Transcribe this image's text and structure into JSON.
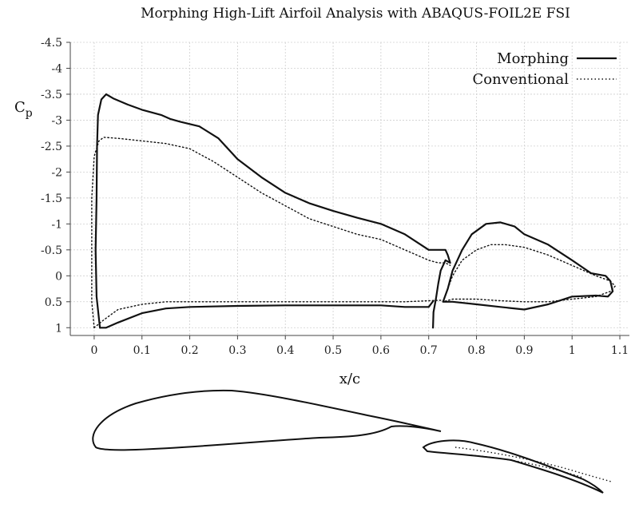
{
  "chart_data": {
    "type": "line",
    "title": "Morphing High-Lift Airfoil Analysis with ABAQUS-FOIL2E FSI",
    "xlabel": "x/c",
    "ylabel": "Cp",
    "ylabel_main": "C",
    "ylabel_sub": "p",
    "xlim": [
      -0.05,
      1.12
    ],
    "ylim": [
      -4.5,
      1.15
    ],
    "y_inverted": true,
    "grid": true,
    "legend_position": "top-right",
    "x_ticks": [
      "0",
      "0.1",
      "0.2",
      "0.3",
      "0.4",
      "0.5",
      "0.6",
      "0.7",
      "0.8",
      "0.9",
      "1",
      "1.1"
    ],
    "x_tick_values": [
      0,
      0.1,
      0.2,
      0.3,
      0.4,
      0.5,
      0.6,
      0.7,
      0.8,
      0.9,
      1.0,
      1.1
    ],
    "y_ticks": [
      "-4.5",
      "-4",
      "-3.5",
      "-3",
      "-2.5",
      "-2",
      "-1.5",
      "-1",
      "-0.5",
      "0",
      "0.5",
      "1"
    ],
    "y_tick_values": [
      -4.5,
      -4,
      -3.5,
      -3,
      -2.5,
      -2,
      -1.5,
      -1,
      -0.5,
      0,
      0.5,
      1
    ],
    "series": [
      {
        "name": "Morphing",
        "style": "solid",
        "color": "#111111",
        "segments": [
          [
            [
              0.012,
              1.0
            ],
            [
              0.005,
              0.4
            ],
            [
              0.003,
              -0.5
            ],
            [
              0.005,
              -1.5
            ],
            [
              0.006,
              -2.5
            ],
            [
              0.008,
              -3.1
            ],
            [
              0.015,
              -3.4
            ],
            [
              0.025,
              -3.5
            ],
            [
              0.04,
              -3.42
            ],
            [
              0.07,
              -3.3
            ],
            [
              0.1,
              -3.2
            ],
            [
              0.14,
              -3.1
            ],
            [
              0.16,
              -3.02
            ],
            [
              0.18,
              -2.97
            ],
            [
              0.22,
              -2.88
            ],
            [
              0.26,
              -2.65
            ],
            [
              0.3,
              -2.25
            ],
            [
              0.35,
              -1.9
            ],
            [
              0.4,
              -1.6
            ],
            [
              0.45,
              -1.4
            ],
            [
              0.5,
              -1.25
            ],
            [
              0.55,
              -1.12
            ],
            [
              0.6,
              -1.0
            ],
            [
              0.65,
              -0.8
            ],
            [
              0.7,
              -0.5
            ],
            [
              0.72,
              -0.5
            ],
            [
              0.735,
              -0.5
            ],
            [
              0.74,
              -0.4
            ],
            [
              0.745,
              -0.25
            ],
            [
              0.735,
              -0.3
            ],
            [
              0.725,
              -0.1
            ],
            [
              0.72,
              0.15
            ],
            [
              0.715,
              0.45
            ],
            [
              0.71,
              0.7
            ],
            [
              0.709,
              1.0
            ]
          ],
          [
            [
              0.012,
              1.0
            ],
            [
              0.025,
              1.0
            ],
            [
              0.05,
              0.9
            ],
            [
              0.1,
              0.72
            ],
            [
              0.15,
              0.63
            ],
            [
              0.2,
              0.6
            ],
            [
              0.3,
              0.58
            ],
            [
              0.4,
              0.57
            ],
            [
              0.5,
              0.57
            ],
            [
              0.6,
              0.57
            ],
            [
              0.65,
              0.6
            ],
            [
              0.7,
              0.6
            ],
            [
              0.71,
              0.48
            ]
          ],
          [
            [
              0.73,
              0.5
            ],
            [
              0.74,
              0.25
            ],
            [
              0.75,
              -0.1
            ],
            [
              0.77,
              -0.5
            ],
            [
              0.79,
              -0.8
            ],
            [
              0.82,
              -1.0
            ],
            [
              0.85,
              -1.03
            ],
            [
              0.88,
              -0.95
            ],
            [
              0.9,
              -0.8
            ],
            [
              0.95,
              -0.6
            ],
            [
              1.0,
              -0.3
            ],
            [
              1.04,
              -0.05
            ],
            [
              1.07,
              0.0
            ],
            [
              1.08,
              0.1
            ],
            [
              1.085,
              0.3
            ],
            [
              1.075,
              0.4
            ],
            [
              1.05,
              0.38
            ],
            [
              1.0,
              0.4
            ],
            [
              0.95,
              0.55
            ],
            [
              0.9,
              0.65
            ],
            [
              0.85,
              0.6
            ],
            [
              0.8,
              0.55
            ],
            [
              0.75,
              0.5
            ],
            [
              0.73,
              0.5
            ]
          ]
        ]
      },
      {
        "name": "Conventional",
        "style": "dotted",
        "color": "#111111",
        "segments": [
          [
            [
              0.0,
              1.0
            ],
            [
              -0.005,
              0.5
            ],
            [
              -0.005,
              -0.5
            ],
            [
              -0.005,
              -1.5
            ],
            [
              0.0,
              -2.3
            ],
            [
              0.01,
              -2.6
            ],
            [
              0.02,
              -2.67
            ],
            [
              0.05,
              -2.65
            ],
            [
              0.1,
              -2.6
            ],
            [
              0.15,
              -2.55
            ],
            [
              0.2,
              -2.45
            ],
            [
              0.25,
              -2.2
            ],
            [
              0.3,
              -1.9
            ],
            [
              0.35,
              -1.6
            ],
            [
              0.4,
              -1.35
            ],
            [
              0.45,
              -1.1
            ],
            [
              0.5,
              -0.95
            ],
            [
              0.55,
              -0.8
            ],
            [
              0.6,
              -0.7
            ],
            [
              0.65,
              -0.5
            ],
            [
              0.7,
              -0.3
            ],
            [
              0.72,
              -0.25
            ],
            [
              0.735,
              -0.25
            ],
            [
              0.745,
              -0.2
            ]
          ],
          [
            [
              0.0,
              1.0
            ],
            [
              0.02,
              0.85
            ],
            [
              0.05,
              0.65
            ],
            [
              0.1,
              0.55
            ],
            [
              0.15,
              0.5
            ],
            [
              0.2,
              0.5
            ],
            [
              0.3,
              0.5
            ],
            [
              0.4,
              0.5
            ],
            [
              0.5,
              0.5
            ],
            [
              0.6,
              0.5
            ],
            [
              0.65,
              0.5
            ],
            [
              0.7,
              0.48
            ],
            [
              0.73,
              0.47
            ]
          ],
          [
            [
              0.73,
              0.5
            ],
            [
              0.75,
              0.0
            ],
            [
              0.77,
              -0.3
            ],
            [
              0.8,
              -0.5
            ],
            [
              0.83,
              -0.6
            ],
            [
              0.86,
              -0.6
            ],
            [
              0.9,
              -0.55
            ],
            [
              0.95,
              -0.4
            ],
            [
              1.0,
              -0.2
            ],
            [
              1.05,
              0.0
            ],
            [
              1.08,
              0.1
            ],
            [
              1.09,
              0.2
            ],
            [
              1.08,
              0.3
            ],
            [
              1.05,
              0.4
            ],
            [
              1.0,
              0.45
            ],
            [
              0.95,
              0.5
            ],
            [
              0.9,
              0.5
            ],
            [
              0.85,
              0.48
            ],
            [
              0.8,
              0.45
            ],
            [
              0.75,
              0.45
            ],
            [
              0.73,
              0.5
            ]
          ]
        ]
      }
    ]
  }
}
